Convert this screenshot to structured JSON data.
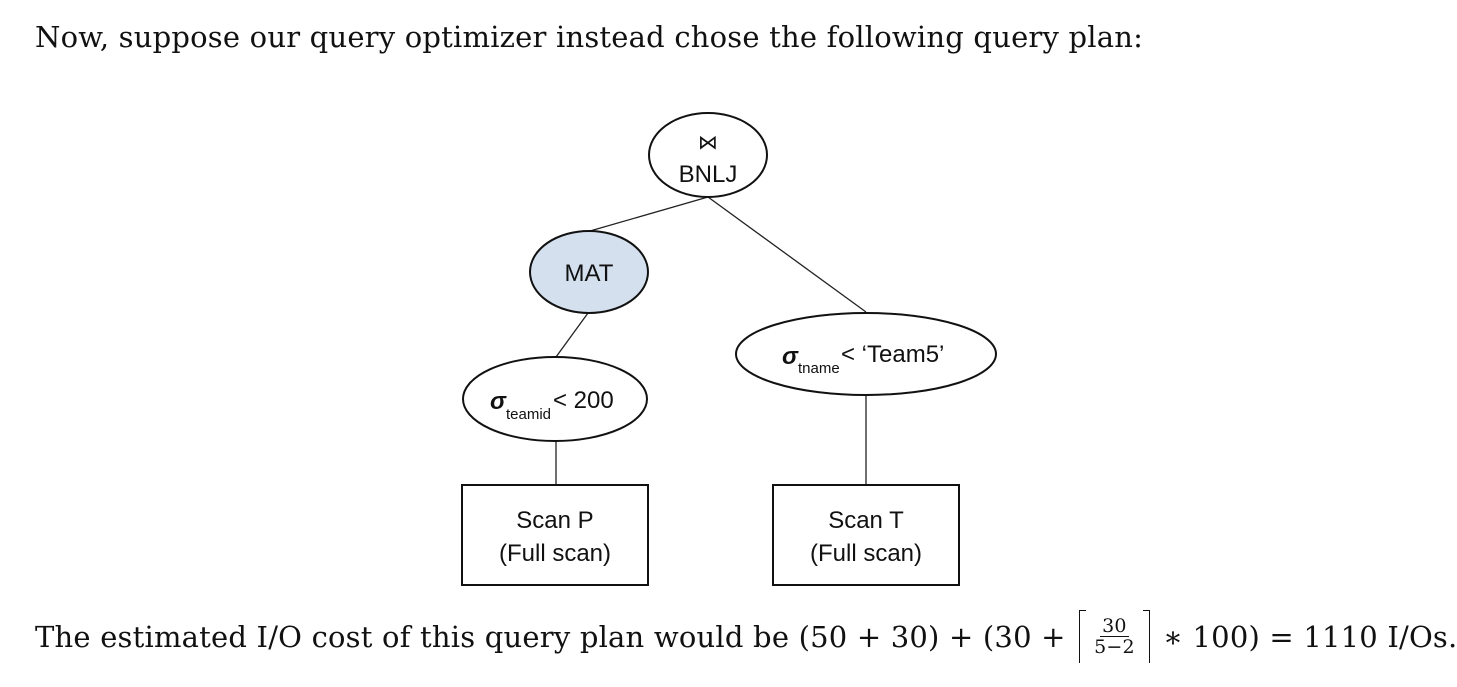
{
  "intro_text": "Now, suppose our query optimizer instead chose the following query plan:",
  "tree": {
    "root": {
      "symbol": "⋈",
      "label": "BNLJ"
    },
    "mat": {
      "label": "MAT",
      "fill": "#d5e0ef"
    },
    "left_select": {
      "sigma": "σ",
      "subscript": "teamid",
      "condition": "< 200"
    },
    "right_select": {
      "sigma": "σ",
      "subscript": "tname",
      "condition": "< ‘Team5’"
    },
    "scan_left": {
      "line1": "Scan P",
      "line2": "(Full scan)"
    },
    "scan_right": {
      "line1": "Scan T",
      "line2": "(Full scan)"
    }
  },
  "cost": {
    "prefix": "The estimated I/O cost of this query plan would be ",
    "expr_start": "(50 + 30) + (30 + ",
    "frac_num": "30",
    "frac_den": "5−2",
    "expr_end": " ∗ 100) = 1110 I/Os."
  }
}
